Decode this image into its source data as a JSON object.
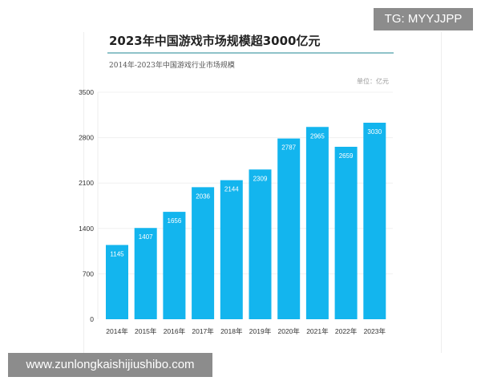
{
  "overlay": {
    "tg_label": "TG: MYYJJPP",
    "site_label": "www.zunlongkaishijiushibo.com"
  },
  "chart_data": {
    "type": "bar",
    "title": "2023年中国游戏市场规模超3000亿元",
    "subtitle": "2014年-2023年中国游戏行业市场规模",
    "unit": "单位：亿元",
    "xlabel": "",
    "ylabel": "",
    "categories": [
      "2014年",
      "2015年",
      "2016年",
      "2017年",
      "2018年",
      "2019年",
      "2020年",
      "2021年",
      "2022年",
      "2023年"
    ],
    "values": [
      1145,
      1407,
      1656,
      2036,
      2144,
      2309,
      2787,
      2965,
      2659,
      3030
    ],
    "yticks": [
      0,
      700,
      1400,
      2100,
      2800,
      3500
    ],
    "ylim": [
      0,
      3500
    ],
    "grid": true,
    "bar_color": "#13b5ee"
  }
}
